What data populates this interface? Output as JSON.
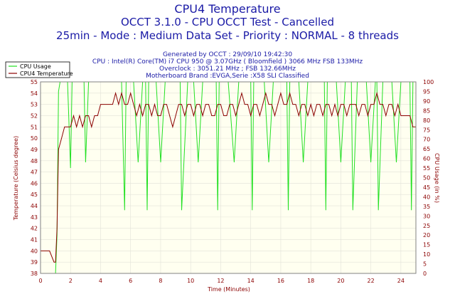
{
  "titles": {
    "line1": "CPU4 Temperature",
    "line2": "OCCT 3.1.0 - CPU OCCT Test - Cancelled",
    "line3": "25min - Mode : Medium Data Set - Priority : NORMAL - 8 threads"
  },
  "info": {
    "generated": "Generated by OCCT : 29/09/10 19:42:30",
    "cpu": "CPU : Intel(R) Core(TM) i7 CPU 950 @ 3.07GHz ( Bloomfield ) 3066 MHz FSB 133MHz",
    "overclock": "Overclock : 3051.21 MHz ; FSB 132.66MHz",
    "motherboard": "Motherboard Brand :EVGA,Serie :X58 SLI Classified"
  },
  "colors": {
    "usage": "#22e022",
    "temperature": "#8b0000",
    "plot_bg": "#fffff0",
    "axis_text": "#8b0000",
    "title": "#1a1aa6"
  },
  "chart_data": {
    "type": "line",
    "xlabel": "Time (Minutes)",
    "ylabel_left": "Temperature (Celsius degree)",
    "ylabel_right": "CPU Usage (in %)",
    "xlim": [
      0,
      25
    ],
    "ylim_left": [
      38,
      55
    ],
    "ylim_right": [
      0,
      100
    ],
    "x_ticks": [
      0,
      2,
      4,
      6,
      8,
      10,
      12,
      14,
      16,
      18,
      20,
      22,
      24
    ],
    "y_ticks_left": [
      38,
      39,
      40,
      41,
      42,
      43,
      44,
      45,
      46,
      47,
      48,
      49,
      50,
      51,
      52,
      53,
      54,
      55
    ],
    "y_ticks_right": [
      0,
      5,
      10,
      15,
      20,
      25,
      30,
      35,
      40,
      45,
      50,
      55,
      60,
      65,
      70,
      75,
      80,
      85,
      90,
      95,
      100
    ],
    "grid": true,
    "legend": "top-left",
    "series": [
      {
        "name": "CPU Usage",
        "axis": "right",
        "x": [
          0,
          0.9,
          1.0,
          1.1,
          1.2,
          1.3,
          1.5,
          1.8,
          2.0,
          2.1,
          2.3,
          2.6,
          2.9,
          3.0,
          3.2,
          3.5,
          3.9,
          4.0,
          4.2,
          4.6,
          5.0,
          5.4,
          5.6,
          5.7,
          5.8,
          6.2,
          6.5,
          6.8,
          7.0,
          7.1,
          7.2,
          7.5,
          7.7,
          8.0,
          8.3,
          8.6,
          9.0,
          9.2,
          9.3,
          9.4,
          9.8,
          10.2,
          10.5,
          10.8,
          11.1,
          11.4,
          11.7,
          11.8,
          11.9,
          12.2,
          12.5,
          12.9,
          13.2,
          13.5,
          13.8,
          14.0,
          14.1,
          14.2,
          14.5,
          14.9,
          15.2,
          15.5,
          15.9,
          16.1,
          16.4,
          16.5,
          16.6,
          16.9,
          17.2,
          17.5,
          17.8,
          18.1,
          18.4,
          18.7,
          18.9,
          19.0,
          19.1,
          19.4,
          19.7,
          20.0,
          20.3,
          20.6,
          20.7,
          20.8,
          21.1,
          21.4,
          21.7,
          22.0,
          22.3,
          22.4,
          22.5,
          22.8,
          23.1,
          23.4,
          23.7,
          24.0,
          24.3,
          24.6,
          24.7,
          24.8,
          25.0
        ],
        "values": [
          0,
          0,
          0,
          20,
          95,
          100,
          100,
          100,
          55,
          100,
          100,
          100,
          100,
          58,
          100,
          100,
          100,
          100,
          100,
          100,
          100,
          100,
          33,
          100,
          100,
          100,
          58,
          100,
          100,
          33,
          100,
          100,
          100,
          58,
          100,
          100,
          100,
          100,
          100,
          33,
          100,
          100,
          58,
          100,
          100,
          100,
          100,
          33,
          100,
          100,
          100,
          58,
          100,
          100,
          100,
          100,
          33,
          100,
          100,
          100,
          58,
          100,
          100,
          100,
          100,
          33,
          100,
          100,
          100,
          58,
          100,
          100,
          100,
          100,
          100,
          33,
          100,
          100,
          100,
          58,
          100,
          100,
          100,
          33,
          100,
          100,
          100,
          58,
          100,
          100,
          33,
          100,
          100,
          100,
          58,
          100,
          100,
          100,
          33,
          100,
          100
        ]
      },
      {
        "name": "CPU4 Temperature",
        "axis": "left",
        "x": [
          0,
          0.3,
          0.6,
          0.9,
          1.0,
          1.1,
          1.2,
          1.4,
          1.6,
          1.8,
          2.0,
          2.2,
          2.4,
          2.6,
          2.8,
          3.0,
          3.2,
          3.4,
          3.6,
          3.8,
          4.0,
          4.2,
          4.4,
          4.6,
          4.8,
          5.0,
          5.2,
          5.4,
          5.6,
          5.8,
          6.0,
          6.2,
          6.4,
          6.6,
          6.8,
          7.0,
          7.2,
          7.4,
          7.6,
          7.8,
          8.0,
          8.2,
          8.4,
          8.6,
          8.8,
          9.0,
          9.2,
          9.4,
          9.6,
          9.8,
          10.0,
          10.2,
          10.4,
          10.6,
          10.8,
          11.0,
          11.2,
          11.4,
          11.6,
          11.8,
          12.0,
          12.2,
          12.4,
          12.6,
          12.8,
          13.0,
          13.2,
          13.4,
          13.6,
          13.8,
          14.0,
          14.2,
          14.4,
          14.6,
          14.8,
          15.0,
          15.2,
          15.4,
          15.6,
          15.8,
          16.0,
          16.2,
          16.4,
          16.6,
          16.8,
          17.0,
          17.2,
          17.4,
          17.6,
          17.8,
          18.0,
          18.2,
          18.4,
          18.6,
          18.8,
          19.0,
          19.2,
          19.4,
          19.6,
          19.8,
          20.0,
          20.2,
          20.4,
          20.6,
          20.8,
          21.0,
          21.2,
          21.4,
          21.6,
          21.8,
          22.0,
          22.2,
          22.4,
          22.6,
          22.8,
          23.0,
          23.2,
          23.4,
          23.6,
          23.8,
          24.0,
          24.2,
          24.4,
          24.6,
          24.8,
          25.0
        ],
        "values": [
          40,
          40,
          40,
          39,
          39,
          42,
          49,
          50,
          51,
          51,
          51,
          52,
          51,
          52,
          51,
          52,
          52,
          51,
          52,
          52,
          53,
          53,
          53,
          53,
          53,
          54,
          53,
          54,
          53,
          53,
          54,
          53,
          52,
          53,
          52,
          53,
          53,
          52,
          53,
          52,
          52,
          53,
          53,
          52,
          51,
          52,
          53,
          53,
          52,
          53,
          53,
          52,
          53,
          53,
          52,
          53,
          53,
          52,
          52,
          53,
          53,
          52,
          52,
          53,
          53,
          52,
          53,
          54,
          53,
          53,
          52,
          53,
          53,
          52,
          53,
          54,
          53,
          53,
          52,
          53,
          54,
          53,
          53,
          54,
          53,
          53,
          52,
          53,
          53,
          52,
          53,
          52,
          53,
          53,
          52,
          53,
          53,
          52,
          53,
          52,
          53,
          53,
          52,
          53,
          53,
          53,
          52,
          53,
          53,
          52,
          53,
          53,
          54,
          53,
          53,
          52,
          53,
          53,
          52,
          53,
          52,
          52,
          52,
          52,
          51,
          51
        ]
      }
    ]
  }
}
